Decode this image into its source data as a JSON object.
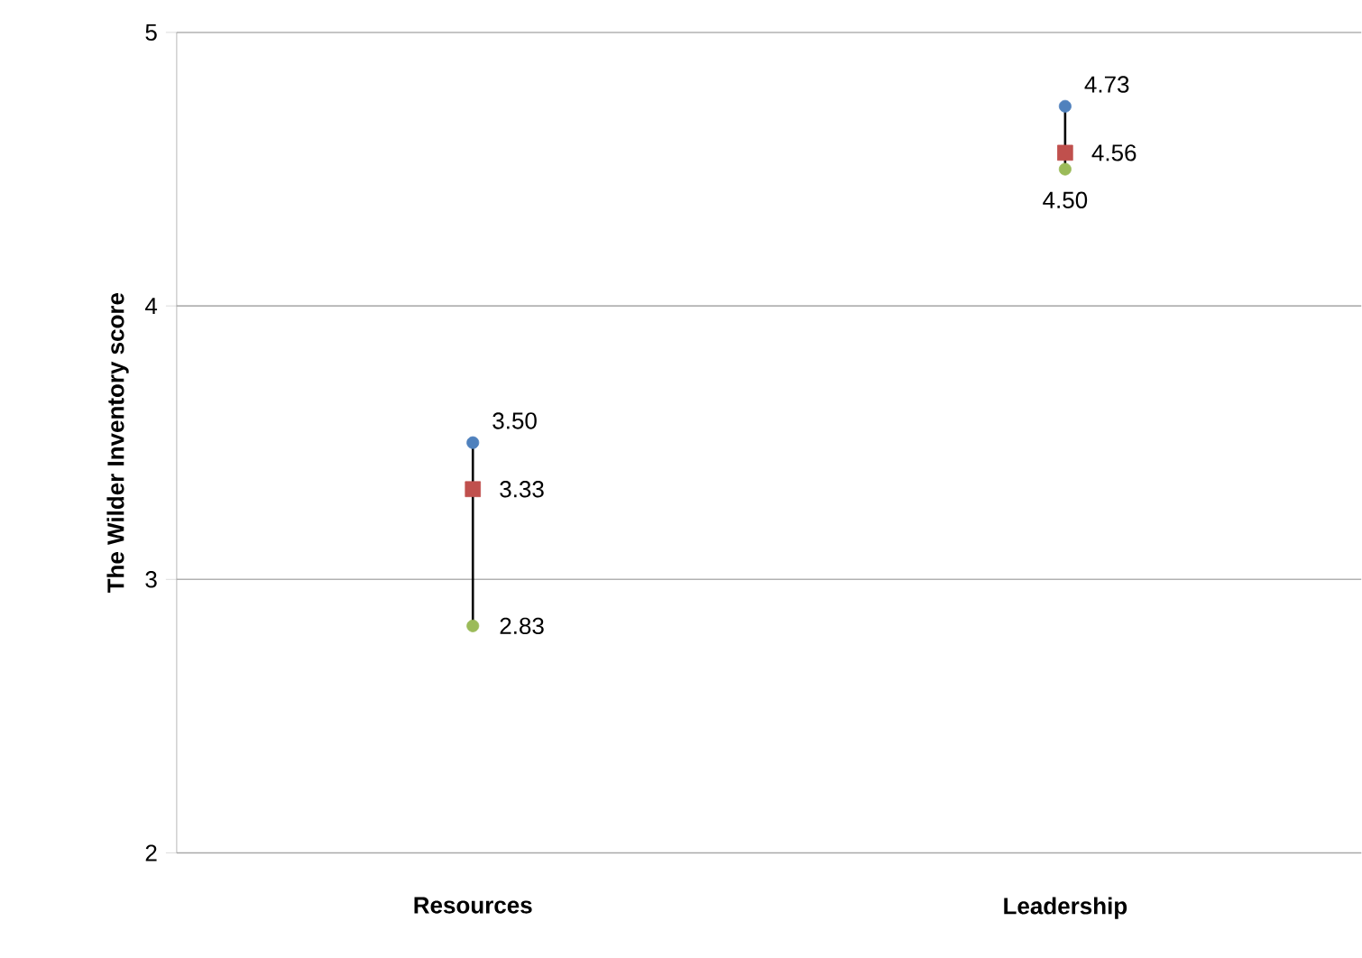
{
  "chart_data": {
    "type": "scatter",
    "ylabel": "The Wilder Inventory score",
    "categories": [
      "Resources",
      "Leadership"
    ],
    "ylim": [
      2,
      5
    ],
    "yticks": [
      2,
      3,
      4,
      5
    ],
    "grid": "y",
    "series": [
      {
        "type": "line",
        "marker": "none",
        "color": "#000000",
        "x": [
          "Resources",
          "Resources"
        ],
        "values": [
          2.83,
          3.5
        ]
      },
      {
        "type": "line",
        "marker": "none",
        "color": "#000000",
        "x": [
          "Leadership",
          "Leadership"
        ],
        "values": [
          4.5,
          4.73
        ]
      },
      {
        "marker": "circle",
        "color": "#4f81bd",
        "values": [
          3.5,
          4.73
        ],
        "value_labels": [
          "3.50",
          "4.73"
        ]
      },
      {
        "marker": "square",
        "color": "#c0504d",
        "values": [
          3.33,
          4.56
        ],
        "value_labels": [
          "3.33",
          "4.56"
        ]
      },
      {
        "marker": "circle",
        "color": "#9bbb59",
        "values": [
          2.83,
          4.5
        ],
        "value_labels": [
          "2.83",
          "4.50"
        ]
      }
    ]
  }
}
